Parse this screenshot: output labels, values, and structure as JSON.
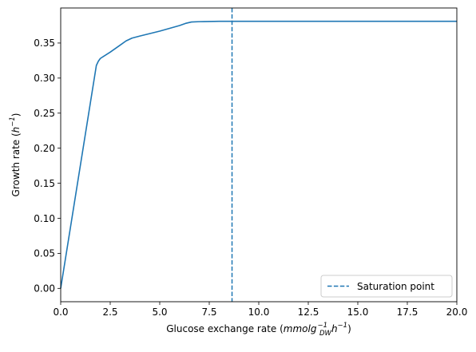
{
  "chart_data": {
    "type": "line",
    "title": "",
    "xlabel": {
      "prefix": "Glucose exchange rate (",
      "math": "mmolg",
      "sub": "DW",
      "sup": "−1",
      "math2": "h",
      "sup2": "−1",
      "suffix": ")"
    },
    "ylabel": {
      "prefix": "Growth rate (",
      "math": "h",
      "sup": "−1",
      "suffix": ")"
    },
    "xlim": [
      0,
      20
    ],
    "ylim": [
      -0.019,
      0.4
    ],
    "xticks": [
      0,
      2.5,
      5,
      7.5,
      10,
      12.5,
      15,
      17.5,
      20
    ],
    "xtick_labels": [
      "0.0",
      "2.5",
      "5.0",
      "7.5",
      "10.0",
      "12.5",
      "15.0",
      "17.5",
      "20.0"
    ],
    "yticks": [
      0,
      0.05,
      0.1,
      0.15,
      0.2,
      0.25,
      0.3,
      0.35
    ],
    "ytick_labels": [
      "0.00",
      "0.05",
      "0.10",
      "0.15",
      "0.20",
      "0.25",
      "0.30",
      "0.35"
    ],
    "series": [
      {
        "color": "#1f77b4",
        "x": [
          0,
          1.8,
          1.9,
          2.0,
          2.5,
          3.0,
          3.3,
          3.6,
          4.0,
          5.0,
          6.0,
          6.3,
          6.6,
          7.0,
          8.0,
          8.6,
          10.0,
          15.0,
          20.0
        ],
        "y": [
          0,
          0.318,
          0.324,
          0.328,
          0.337,
          0.347,
          0.353,
          0.357,
          0.36,
          0.367,
          0.375,
          0.378,
          0.38,
          0.3805,
          0.381,
          0.381,
          0.381,
          0.381,
          0.381
        ]
      }
    ],
    "vline": {
      "x": 8.65,
      "color": "#1f77b4",
      "style": "dashed",
      "label": "Saturation point"
    },
    "legend": {
      "position": "bottom-right",
      "entries": [
        "Saturation point"
      ]
    },
    "grid": false
  }
}
